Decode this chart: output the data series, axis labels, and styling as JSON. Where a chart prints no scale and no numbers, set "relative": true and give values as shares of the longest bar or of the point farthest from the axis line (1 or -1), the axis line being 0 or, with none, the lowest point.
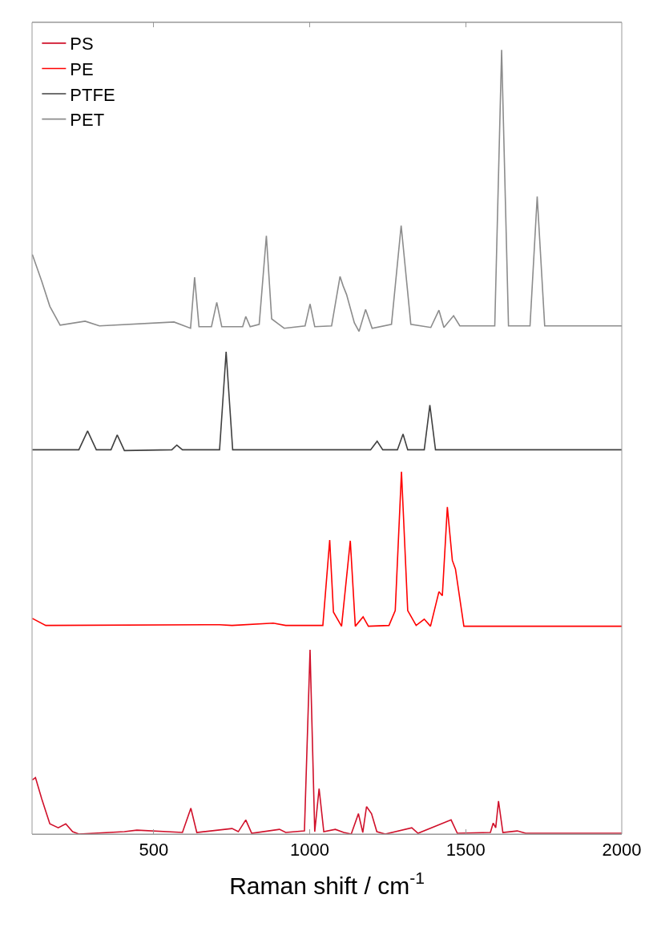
{
  "chart_data": {
    "type": "line",
    "relative": true,
    "xlabel": "Raman shift / cm$^{-1}$",
    "xlim": [
      110,
      2000
    ],
    "xticks": [
      500,
      1000,
      1500,
      2000
    ],
    "grid": false,
    "legend": "top left",
    "marker": "none",
    "line_style": "solid",
    "series": [
      {
        "name": "PS",
        "color": "#d0102a",
        "x": [
          111,
          121,
          141,
          167,
          194,
          218,
          240,
          260,
          406,
          446,
          592,
          619,
          638,
          751,
          771,
          795,
          814,
          903,
          923,
          983,
          1001,
          1016,
          1030,
          1045,
          1082,
          1109,
          1133,
          1156,
          1170,
          1182,
          1198,
          1215,
          1242,
          1327,
          1347,
          1453,
          1473,
          1579,
          1588,
          1596,
          1605,
          1619,
          1665,
          1692,
          2000
        ],
        "values": [
          0.069,
          0.072,
          0.045,
          0.013,
          0.008,
          0.013,
          0.003,
          0.0,
          0.003,
          0.005,
          0.002,
          0.033,
          0.002,
          0.007,
          0.003,
          0.018,
          0.001,
          0.006,
          0.002,
          0.004,
          0.235,
          0.003,
          0.058,
          0.003,
          0.006,
          0.002,
          0.0,
          0.026,
          0.002,
          0.035,
          0.026,
          0.003,
          0.0,
          0.008,
          0.001,
          0.018,
          0.001,
          0.002,
          0.014,
          0.008,
          0.042,
          0.002,
          0.004,
          0.001,
          0.001
        ]
      },
      {
        "name": "PE",
        "color": "#ff0000",
        "x": [
          111,
          154,
          711,
          751,
          883,
          923,
          1042,
          1064,
          1076,
          1102,
          1130,
          1146,
          1171,
          1188,
          1254,
          1274,
          1294,
          1314,
          1341,
          1367,
          1387,
          1414,
          1425,
          1441,
          1457,
          1467,
          1494,
          2000
        ],
        "values": [
          0.275,
          0.266,
          0.267,
          0.266,
          0.269,
          0.266,
          0.266,
          0.375,
          0.283,
          0.265,
          0.374,
          0.265,
          0.277,
          0.265,
          0.266,
          0.285,
          0.462,
          0.285,
          0.266,
          0.274,
          0.265,
          0.309,
          0.304,
          0.417,
          0.349,
          0.338,
          0.265,
          0.265
        ]
      },
      {
        "name": "PTFE",
        "color": "#404040",
        "x": [
          111,
          260,
          288,
          316,
          363,
          383,
          406,
          558,
          574,
          592,
          711,
          732,
          753,
          1195,
          1216,
          1234,
          1281,
          1299,
          1314,
          1367,
          1385,
          1403,
          2000
        ],
        "values": [
          0.49,
          0.49,
          0.514,
          0.49,
          0.49,
          0.509,
          0.489,
          0.49,
          0.496,
          0.49,
          0.49,
          0.615,
          0.49,
          0.49,
          0.501,
          0.49,
          0.49,
          0.51,
          0.49,
          0.49,
          0.547,
          0.49,
          0.49
        ]
      },
      {
        "name": "PET",
        "color": "#8c8c8c",
        "x": [
          111,
          141,
          167,
          200,
          280,
          326,
          565,
          618,
          631,
          645,
          685,
          702,
          718,
          785,
          795,
          809,
          838,
          861,
          878,
          898,
          918,
          985,
          1001,
          1016,
          1070,
          1097,
          1107,
          1118,
          1143,
          1158,
          1179,
          1200,
          1262,
          1293,
          1324,
          1388,
          1414,
          1430,
          1461,
          1481,
          1593,
          1615,
          1637,
          1706,
          1729,
          1753,
          2000
        ],
        "values": [
          0.739,
          0.705,
          0.673,
          0.649,
          0.654,
          0.648,
          0.653,
          0.645,
          0.71,
          0.647,
          0.647,
          0.678,
          0.647,
          0.647,
          0.66,
          0.647,
          0.65,
          0.763,
          0.657,
          0.651,
          0.645,
          0.648,
          0.676,
          0.647,
          0.648,
          0.711,
          0.699,
          0.688,
          0.652,
          0.641,
          0.669,
          0.645,
          0.65,
          0.776,
          0.65,
          0.646,
          0.668,
          0.646,
          0.661,
          0.648,
          0.648,
          1.0,
          0.648,
          0.648,
          0.813,
          0.648,
          0.648
        ]
      }
    ]
  }
}
